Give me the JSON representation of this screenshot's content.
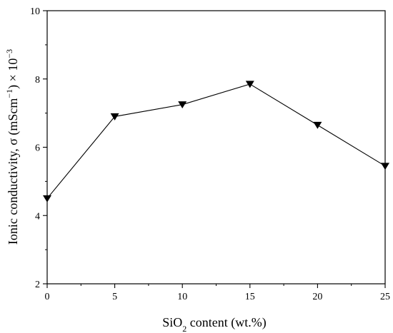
{
  "chart_data": {
    "type": "line",
    "xlabel_parts": {
      "base": "SiO",
      "sub": "2",
      "rest": " content (wt.%)"
    },
    "ylabel_parts": {
      "main": "Ionic conductivity, σ (mScm",
      "exp1": "−1",
      "close": ") × 10",
      "exp2": "−3"
    },
    "xlim": [
      0,
      25
    ],
    "ylim": [
      2,
      10
    ],
    "x_ticks": [
      0,
      5,
      10,
      15,
      20,
      25
    ],
    "y_ticks": [
      2,
      4,
      6,
      8,
      10
    ],
    "grid": false,
    "legend": "none",
    "marker": "down-triangle",
    "series": [
      {
        "x": [
          0,
          5,
          10,
          15,
          20,
          25
        ],
        "values": [
          4.5,
          6.9,
          7.25,
          7.85,
          6.65,
          5.45
        ]
      }
    ]
  }
}
